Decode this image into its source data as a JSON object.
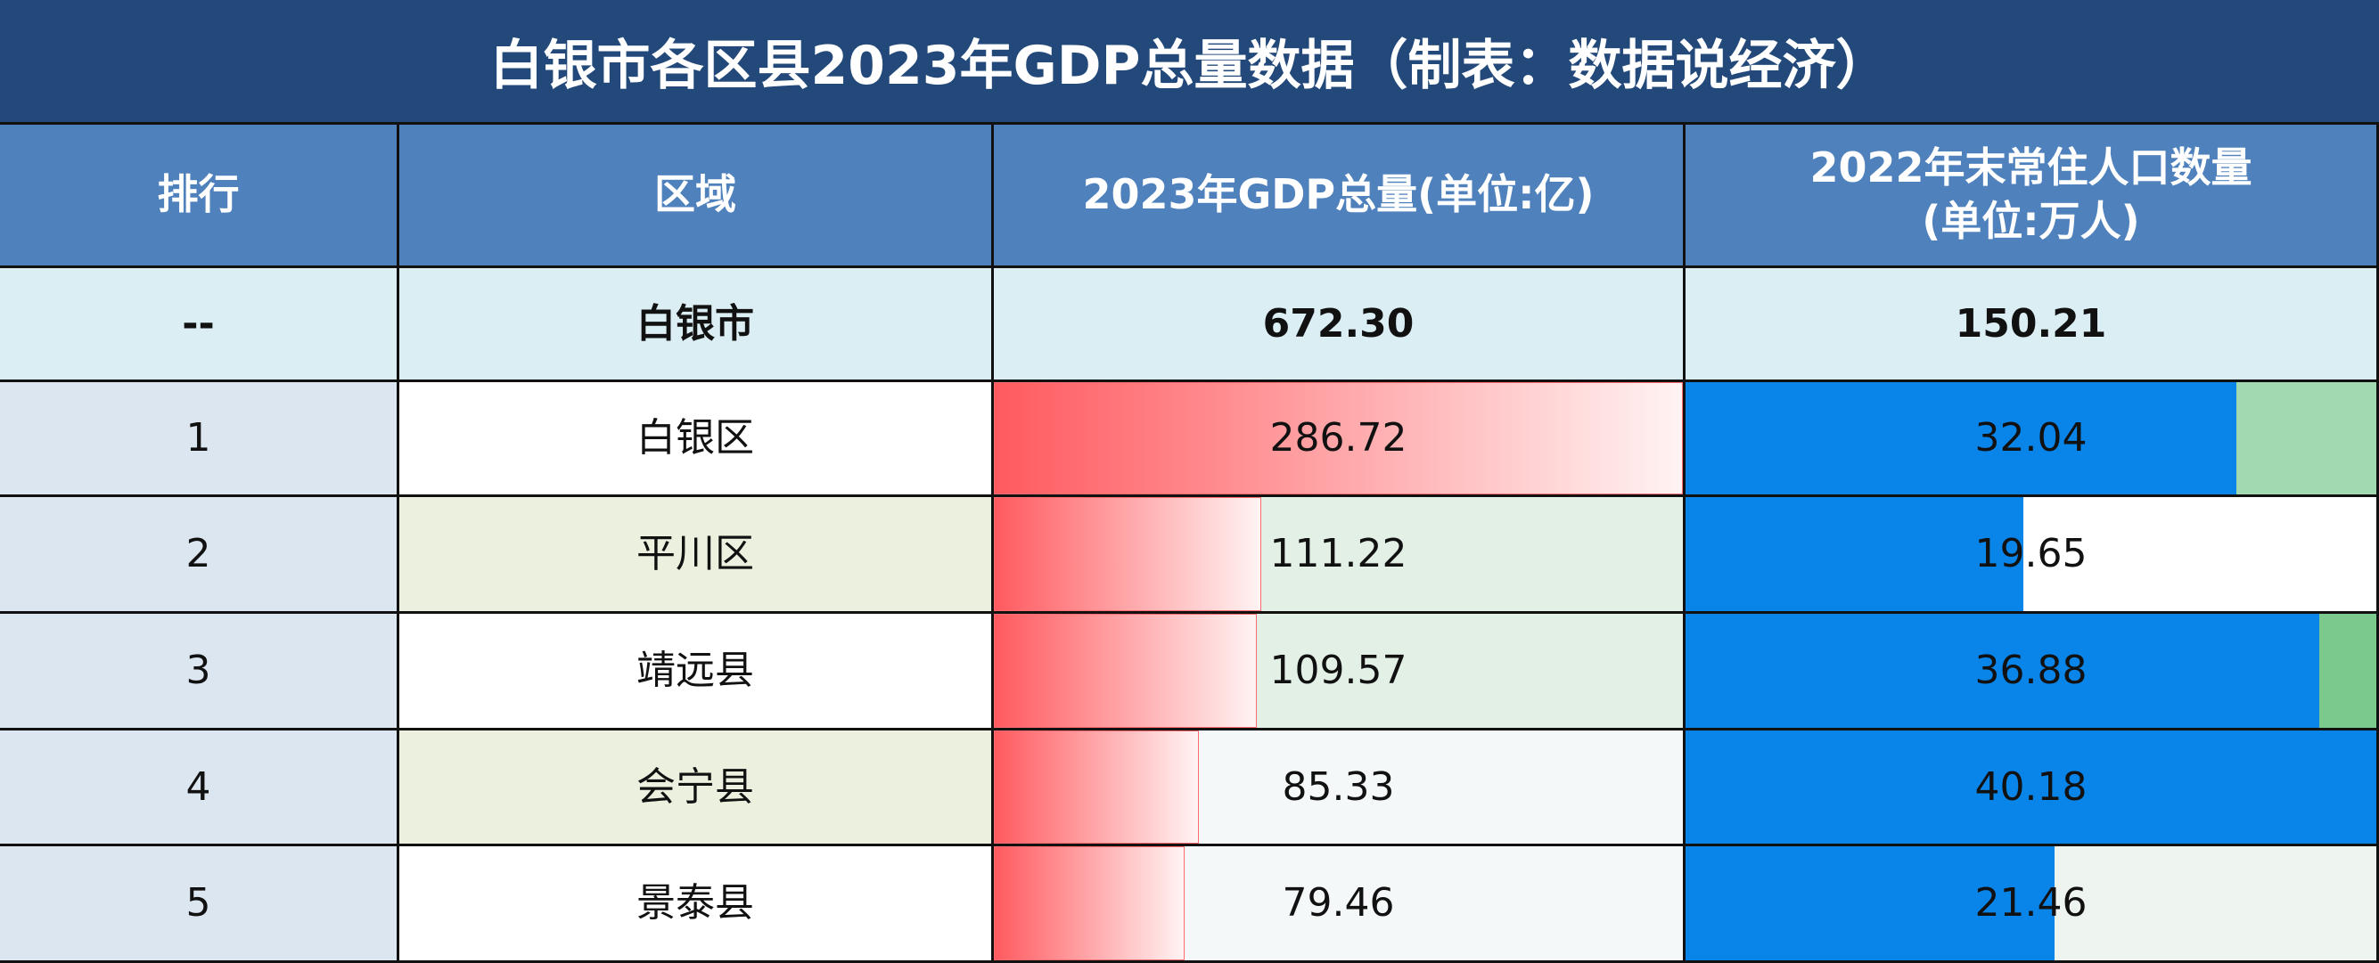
{
  "title": "白银市各区县2023年GDP总量数据（制表：数据说经济）",
  "header": {
    "rank": "排行",
    "region": "区域",
    "gdp": "2023年GDP总量(单位:亿)",
    "pop": "2022年末常住人口数量\n(单位:万人)"
  },
  "total": {
    "rank": "--",
    "region": "白银市",
    "gdp": "672.30",
    "pop": "150.21"
  },
  "rows": [
    {
      "rank": "1",
      "region": "白银区",
      "gdp": "286.72",
      "pop": "32.04"
    },
    {
      "rank": "2",
      "region": "平川区",
      "gdp": "111.22",
      "pop": "19.65"
    },
    {
      "rank": "3",
      "region": "靖远县",
      "gdp": "109.57",
      "pop": "36.88"
    },
    {
      "rank": "4",
      "region": "会宁县",
      "gdp": "85.33",
      "pop": "40.18"
    },
    {
      "rank": "5",
      "region": "景泰县",
      "gdp": "79.46",
      "pop": "21.46"
    }
  ]
}
